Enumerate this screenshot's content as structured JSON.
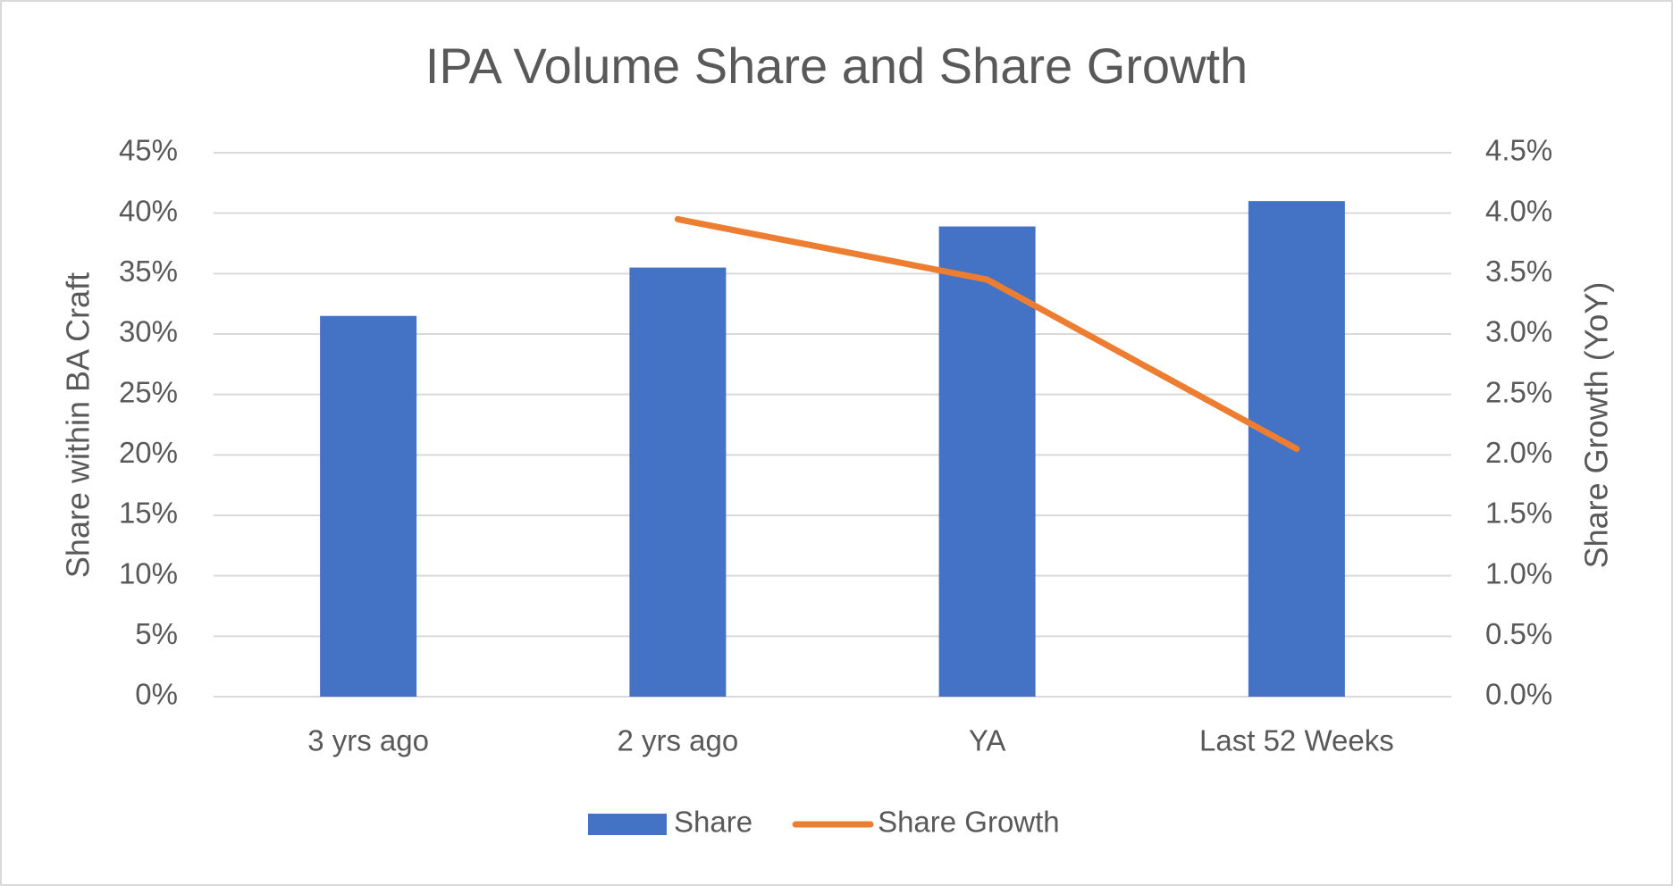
{
  "chart_data": {
    "type": "bar-line",
    "title": "IPA Volume Share and Share Growth",
    "categories": [
      "3 yrs ago",
      "2 yrs ago",
      "YA",
      "Last 52 Weeks"
    ],
    "series": [
      {
        "name": "Share",
        "type": "bar",
        "color": "#4472c4",
        "values": [
          31.5,
          35.5,
          38.9,
          41.0
        ]
      },
      {
        "name": "Share Growth",
        "type": "line",
        "color": "#ed7d31",
        "axis": "y2",
        "values": [
          null,
          3.95,
          3.45,
          2.05
        ]
      }
    ],
    "y_label": "Share within BA Craft",
    "y2_label": "Share Growth (YoY)",
    "ylim": [
      0,
      45
    ],
    "yticks": [
      {
        "value": 0,
        "label": "0%"
      },
      {
        "value": 5,
        "label": "5%"
      },
      {
        "value": 10,
        "label": "10%"
      },
      {
        "value": 15,
        "label": "15%"
      },
      {
        "value": 20,
        "label": "20%"
      },
      {
        "value": 25,
        "label": "25%"
      },
      {
        "value": 30,
        "label": "30%"
      },
      {
        "value": 35,
        "label": "35%"
      },
      {
        "value": 40,
        "label": "40%"
      },
      {
        "value": 45,
        "label": "45%"
      }
    ],
    "y2lim": [
      0,
      4.5
    ],
    "y2ticks": [
      {
        "value": 0,
        "label": "0.0%"
      },
      {
        "value": 0.5,
        "label": "0.5%"
      },
      {
        "value": 1,
        "label": "1.0%"
      },
      {
        "value": 1.5,
        "label": "1.5%"
      },
      {
        "value": 2,
        "label": "2.0%"
      },
      {
        "value": 2.5,
        "label": "2.5%"
      },
      {
        "value": 3,
        "label": "3.0%"
      },
      {
        "value": 3.5,
        "label": "3.5%"
      },
      {
        "value": 4,
        "label": "4.0%"
      },
      {
        "value": 4.5,
        "label": "4.5%"
      }
    ],
    "grid": true,
    "legend": "bottom"
  }
}
